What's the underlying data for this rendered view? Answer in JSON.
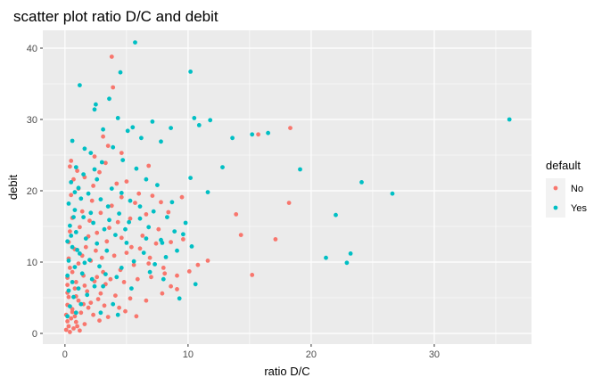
{
  "chart_data": {
    "type": "scatter",
    "title": "scatter plot ratio D/C and debit",
    "xlabel": "ratio D/C",
    "ylabel": "debit",
    "xlim": [
      -1.8,
      37.9
    ],
    "ylim": [
      -1.5,
      42.5
    ],
    "x_ticks": [
      0,
      10,
      20,
      30
    ],
    "y_ticks": [
      0,
      10,
      20,
      30,
      40
    ],
    "grid": true,
    "legend": {
      "title": "default",
      "position": "right"
    },
    "series": [
      {
        "name": "No",
        "color": "#F8766D",
        "points": [
          [
            3.8,
            38.8
          ],
          [
            3.9,
            34.5
          ],
          [
            18.3,
            28.8
          ],
          [
            15.7,
            27.9
          ],
          [
            13.9,
            16.7
          ],
          [
            18.2,
            18.3
          ],
          [
            14.3,
            13.8
          ],
          [
            17.1,
            13.2
          ],
          [
            15.2,
            8.2
          ],
          [
            3.1,
            27.6
          ],
          [
            3.5,
            26.3
          ],
          [
            4.6,
            25.3
          ],
          [
            2.4,
            24.8
          ],
          [
            3.3,
            23.9
          ],
          [
            0.5,
            24.2
          ],
          [
            0.4,
            23.4
          ],
          [
            0.7,
            21.6
          ],
          [
            1.0,
            22.8
          ],
          [
            1.6,
            21.9
          ],
          [
            2.8,
            22.6
          ],
          [
            5.0,
            21.3
          ],
          [
            6.0,
            19.6
          ],
          [
            7.1,
            19.3
          ],
          [
            7.8,
            18.4
          ],
          [
            9.5,
            19.1
          ],
          [
            8.4,
            17.0
          ],
          [
            6.6,
            16.7
          ],
          [
            5.3,
            16.1
          ],
          [
            4.3,
            15.6
          ],
          [
            3.6,
            14.8
          ],
          [
            2.6,
            14.1
          ],
          [
            1.9,
            13.6
          ],
          [
            9.6,
            13.2
          ],
          [
            8.6,
            12.8
          ],
          [
            7.4,
            12.6
          ],
          [
            6.1,
            11.9
          ],
          [
            5.0,
            11.3
          ],
          [
            4.0,
            10.9
          ],
          [
            3.0,
            10.6
          ],
          [
            2.1,
            10.2
          ],
          [
            1.1,
            9.8
          ],
          [
            0.4,
            9.2
          ],
          [
            0.6,
            8.6
          ],
          [
            1.5,
            8.1
          ],
          [
            2.6,
            7.9
          ],
          [
            3.7,
            7.6
          ],
          [
            4.8,
            7.2
          ],
          [
            5.9,
            7.6
          ],
          [
            7.0,
            7.9
          ],
          [
            8.1,
            8.4
          ],
          [
            9.1,
            8.1
          ],
          [
            10.1,
            8.7
          ],
          [
            10.8,
            9.6
          ],
          [
            11.6,
            10.2
          ],
          [
            8.0,
            9.2
          ],
          [
            6.8,
            9.8
          ],
          [
            0.2,
            6.8
          ],
          [
            0.8,
            6.3
          ],
          [
            1.8,
            5.9
          ],
          [
            2.9,
            5.6
          ],
          [
            4.1,
            5.3
          ],
          [
            5.3,
            4.9
          ],
          [
            6.6,
            4.6
          ],
          [
            7.9,
            5.6
          ],
          [
            8.6,
            6.6
          ],
          [
            9.1,
            6.2
          ],
          [
            0.3,
            5.1
          ],
          [
            1.1,
            4.6
          ],
          [
            2.1,
            4.3
          ],
          [
            3.2,
            3.9
          ],
          [
            4.4,
            3.6
          ],
          [
            0.2,
            4.0
          ],
          [
            0.6,
            3.4
          ],
          [
            1.3,
            2.9
          ],
          [
            2.3,
            2.6
          ],
          [
            3.5,
            2.3
          ],
          [
            5.8,
            2.4
          ],
          [
            4.9,
            3.1
          ],
          [
            0.1,
            2.6
          ],
          [
            0.5,
            2.1
          ],
          [
            0.9,
            1.6
          ],
          [
            1.6,
            1.3
          ],
          [
            0.3,
            1.0
          ],
          [
            0.1,
            0.5
          ],
          [
            0.4,
            0.2
          ],
          [
            0.7,
            0.7
          ],
          [
            1.2,
            0.4
          ],
          [
            0.2,
            1.7
          ],
          [
            0.8,
            2.4
          ],
          [
            1.9,
            3.6
          ],
          [
            2.7,
            4.8
          ],
          [
            3.3,
            6.9
          ],
          [
            4.5,
            8.9
          ],
          [
            5.6,
            9.6
          ],
          [
            6.3,
            13.7
          ],
          [
            7.6,
            14.6
          ],
          [
            5.7,
            18.3
          ],
          [
            4.6,
            19.1
          ],
          [
            3.8,
            17.9
          ],
          [
            2.2,
            18.6
          ],
          [
            1.4,
            17.1
          ],
          [
            0.6,
            16.2
          ],
          [
            1.2,
            14.9
          ],
          [
            0.3,
            12.8
          ],
          [
            1.7,
            12.1
          ],
          [
            2.5,
            11.6
          ],
          [
            3.4,
            12.9
          ],
          [
            4.6,
            13.4
          ],
          [
            0.2,
            7.8
          ],
          [
            0.9,
            7.2
          ],
          [
            1.6,
            6.7
          ],
          [
            2.4,
            7.3
          ],
          [
            3.1,
            8.6
          ],
          [
            1.4,
            10.9
          ],
          [
            0.3,
            10.5
          ],
          [
            0.8,
            11.8
          ],
          [
            2.0,
            15.8
          ],
          [
            2.9,
            16.9
          ],
          [
            4.2,
            21.0
          ],
          [
            6.8,
            23.5
          ],
          [
            0.5,
            19.4
          ],
          [
            1.1,
            20.3
          ],
          [
            2.3,
            20.7
          ],
          [
            0.4,
            14.3
          ],
          [
            5.4,
            12.1
          ],
          [
            6.9,
            10.6
          ],
          [
            0.6,
            3.0
          ],
          [
            1.0,
            1.0
          ],
          [
            2.8,
            1.8
          ],
          [
            0.2,
            5.7
          ],
          [
            0.9,
            5.2
          ],
          [
            1.5,
            4.1
          ]
        ]
      },
      {
        "name": "Yes",
        "color": "#00BFC4",
        "points": [
          [
            5.7,
            40.8
          ],
          [
            4.5,
            36.6
          ],
          [
            10.2,
            36.7
          ],
          [
            1.2,
            34.8
          ],
          [
            3.6,
            32.9
          ],
          [
            2.5,
            32.1
          ],
          [
            2.4,
            31.4
          ],
          [
            4.3,
            30.2
          ],
          [
            5.1,
            28.4
          ],
          [
            5.5,
            28.9
          ],
          [
            7.1,
            29.7
          ],
          [
            8.6,
            28.8
          ],
          [
            10.5,
            30.2
          ],
          [
            10.9,
            29.2
          ],
          [
            11.8,
            29.9
          ],
          [
            6.2,
            27.4
          ],
          [
            7.8,
            26.9
          ],
          [
            13.6,
            27.4
          ],
          [
            15.2,
            27.9
          ],
          [
            16.5,
            28.1
          ],
          [
            36.1,
            30.0
          ],
          [
            19.1,
            23.0
          ],
          [
            24.1,
            21.2
          ],
          [
            26.6,
            19.6
          ],
          [
            22.0,
            16.6
          ],
          [
            23.2,
            11.2
          ],
          [
            21.2,
            10.6
          ],
          [
            22.9,
            9.9
          ],
          [
            12.8,
            23.3
          ],
          [
            10.2,
            21.8
          ],
          [
            11.6,
            19.8
          ],
          [
            9.8,
            15.5
          ],
          [
            8.9,
            14.3
          ],
          [
            7.8,
            13.1
          ],
          [
            6.6,
            13.3
          ],
          [
            7.9,
            12.7
          ],
          [
            9.1,
            11.6
          ],
          [
            8.2,
            10.7
          ],
          [
            7.3,
            9.7
          ],
          [
            10.6,
            6.9
          ],
          [
            9.3,
            4.9
          ],
          [
            8.0,
            7.6
          ],
          [
            6.9,
            8.6
          ],
          [
            4.3,
            2.6
          ],
          [
            3.9,
            4.1
          ],
          [
            0.6,
            27.0
          ],
          [
            1.6,
            25.9
          ],
          [
            2.1,
            25.3
          ],
          [
            3.0,
            24.0
          ],
          [
            0.9,
            23.3
          ],
          [
            1.5,
            22.3
          ],
          [
            2.6,
            21.6
          ],
          [
            3.8,
            20.3
          ],
          [
            4.6,
            19.7
          ],
          [
            5.3,
            18.6
          ],
          [
            6.1,
            17.8
          ],
          [
            0.5,
            21.2
          ],
          [
            1.1,
            20.4
          ],
          [
            1.9,
            19.6
          ],
          [
            2.9,
            18.8
          ],
          [
            3.5,
            17.8
          ],
          [
            4.4,
            16.8
          ],
          [
            5.2,
            15.6
          ],
          [
            0.3,
            18.2
          ],
          [
            0.8,
            17.3
          ],
          [
            1.5,
            16.3
          ],
          [
            2.3,
            15.5
          ],
          [
            3.2,
            14.6
          ],
          [
            4.1,
            13.8
          ],
          [
            0.4,
            15.1
          ],
          [
            0.9,
            14.2
          ],
          [
            1.7,
            13.3
          ],
          [
            2.6,
            12.6
          ],
          [
            3.4,
            11.6
          ],
          [
            0.2,
            12.9
          ],
          [
            0.6,
            12.1
          ],
          [
            1.2,
            11.2
          ],
          [
            2.0,
            10.3
          ],
          [
            2.8,
            9.4
          ],
          [
            0.3,
            10.2
          ],
          [
            0.8,
            9.3
          ],
          [
            1.4,
            8.4
          ],
          [
            2.2,
            7.6
          ],
          [
            0.2,
            8.1
          ],
          [
            0.6,
            7.2
          ],
          [
            1.1,
            6.3
          ],
          [
            1.8,
            5.4
          ],
          [
            0.3,
            6.0
          ],
          [
            0.7,
            5.1
          ],
          [
            1.3,
            4.1
          ],
          [
            0.4,
            3.8
          ],
          [
            0.9,
            2.9
          ],
          [
            0.2,
            2.4
          ],
          [
            3.1,
            6.6
          ],
          [
            4.2,
            7.9
          ],
          [
            5.6,
            10.1
          ],
          [
            6.4,
            11.3
          ],
          [
            4.9,
            14.6
          ],
          [
            6.1,
            16.1
          ],
          [
            7.2,
            17.1
          ],
          [
            8.7,
            18.4
          ],
          [
            7.5,
            20.8
          ],
          [
            6.6,
            21.6
          ],
          [
            5.8,
            23.1
          ],
          [
            4.7,
            24.3
          ],
          [
            3.9,
            26.1
          ],
          [
            3.1,
            28.6
          ],
          [
            2.4,
            23.0
          ],
          [
            1.3,
            18.9
          ],
          [
            0.7,
            16.3
          ],
          [
            1.0,
            11.7
          ],
          [
            1.6,
            9.9
          ],
          [
            2.4,
            6.6
          ],
          [
            3.3,
            8.3
          ],
          [
            4.6,
            9.2
          ],
          [
            5.4,
            6.3
          ],
          [
            0.5,
            13.7
          ],
          [
            0.8,
            19.8
          ],
          [
            2.1,
            16.9
          ],
          [
            3.6,
            15.9
          ],
          [
            5.0,
            12.7
          ],
          [
            6.8,
            14.9
          ],
          [
            8.3,
            16.3
          ],
          [
            9.6,
            13.9
          ],
          [
            10.3,
            12.2
          ],
          [
            2.9,
            2.9
          ]
        ]
      }
    ]
  }
}
